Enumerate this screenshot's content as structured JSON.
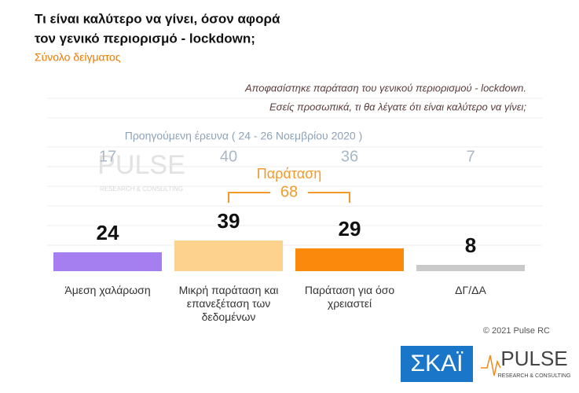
{
  "chart_data": {
    "type": "bar",
    "title": [
      "Τι είναι καλύτερο να γίνει, όσον αφορά",
      "τον γενικό περιορισμό - lockdown;"
    ],
    "subtitle": "Σύνολο δείγματος",
    "question": [
      "Αποφασίστηκε παράταση του γενικού περιορισμού - lockdown.",
      "Εσείς προσωπικά, τι θα λέγατε ότι είναι καλύτερο να γίνει;"
    ],
    "categories": [
      "Άμεση χαλάρωση",
      "Μικρή παράταση και επανεξέταση των δεδομένων",
      "Παράταση για όσο χρειαστεί",
      "ΔΓ/ΔΑ"
    ],
    "values": [
      24,
      39,
      29,
      8
    ],
    "colors": [
      "#a57ef0",
      "#fdd28e",
      "#fb8a0c",
      "#c9c9c9"
    ],
    "previous_label": "Προηγούμενη έρευνα ( 24 - 26 Νοεμβρίου 2020 )",
    "previous_values": [
      17,
      40,
      36,
      7
    ],
    "bracket": {
      "label": "Παράταση",
      "value": 68,
      "from": 1,
      "to": 2
    },
    "copyright": "© 2021 Pulse RC",
    "logos": {
      "broadcaster": "ΣΚΑΪ",
      "pollster": "PULSE",
      "tagline": "RESEARCH & CONSULTING"
    }
  }
}
